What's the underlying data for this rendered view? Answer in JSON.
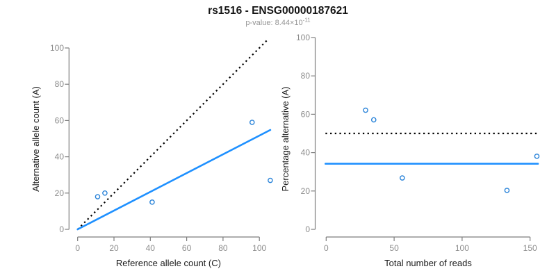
{
  "header": {
    "title": "rs1516 - ENSG00000187621",
    "pvalue_label": "p-value:",
    "pvalue_base": "8.44×10",
    "pvalue_exponent": "-11"
  },
  "colors": {
    "accent_blue": "#1E90FF",
    "point_blue": "#2B84D9",
    "dotted_black": "#000000",
    "axis_gray": "#7D7D7D",
    "tick_label_gray": "#8C8C8C",
    "axis_title_black": "#1A1A1A",
    "subtitle_gray": "#949494"
  },
  "chart_data": [
    {
      "type": "scatter",
      "panel": "allele-counts",
      "xlabel": "Reference allele count (C)",
      "ylabel": "Alternative allele count (A)",
      "xticks": [
        0,
        20,
        40,
        60,
        80,
        100
      ],
      "yticks": [
        0,
        20,
        40,
        60,
        80,
        100
      ],
      "xlim": [
        0,
        106
      ],
      "ylim": [
        0,
        104
      ],
      "grid": false,
      "legend": "none",
      "points": [
        {
          "x": 11,
          "y": 18
        },
        {
          "x": 15,
          "y": 20
        },
        {
          "x": 41,
          "y": 15
        },
        {
          "x": 96,
          "y": 59
        },
        {
          "x": 106,
          "y": 27
        }
      ],
      "lines": [
        {
          "name": "identity-line",
          "style": "dotted",
          "color_key": "dotted_black",
          "x1": 0,
          "y1": 0,
          "x2": 104.3,
          "y2": 104.3
        },
        {
          "name": "fit-line",
          "style": "solid",
          "color_key": "accent_blue",
          "x1": 0,
          "y1": 0,
          "x2": 106,
          "y2": 54.8
        }
      ]
    },
    {
      "type": "scatter",
      "panel": "percentage-vs-coverage",
      "xlabel": "Total number of reads",
      "ylabel": "Percentage alternative (A)",
      "xticks": [
        0,
        50,
        100,
        150
      ],
      "yticks": [
        0,
        20,
        40,
        60,
        80,
        100
      ],
      "xlim": [
        0,
        156
      ],
      "ylim": [
        0,
        100
      ],
      "grid": false,
      "legend": "none",
      "points": [
        {
          "x": 29,
          "y": 62.1
        },
        {
          "x": 35,
          "y": 57.1
        },
        {
          "x": 56,
          "y": 26.8
        },
        {
          "x": 133,
          "y": 20.3
        },
        {
          "x": 155,
          "y": 38.1
        }
      ],
      "lines": [
        {
          "name": "fifty-percent-line",
          "style": "dotted",
          "color_key": "dotted_black",
          "x1": -0.5,
          "y1": 50,
          "x2": 155.8,
          "y2": 50
        },
        {
          "name": "mean-percentage-line",
          "style": "solid",
          "color_key": "accent_blue",
          "x1": -0.5,
          "y1": 34.2,
          "x2": 155.8,
          "y2": 34.2
        }
      ]
    }
  ]
}
